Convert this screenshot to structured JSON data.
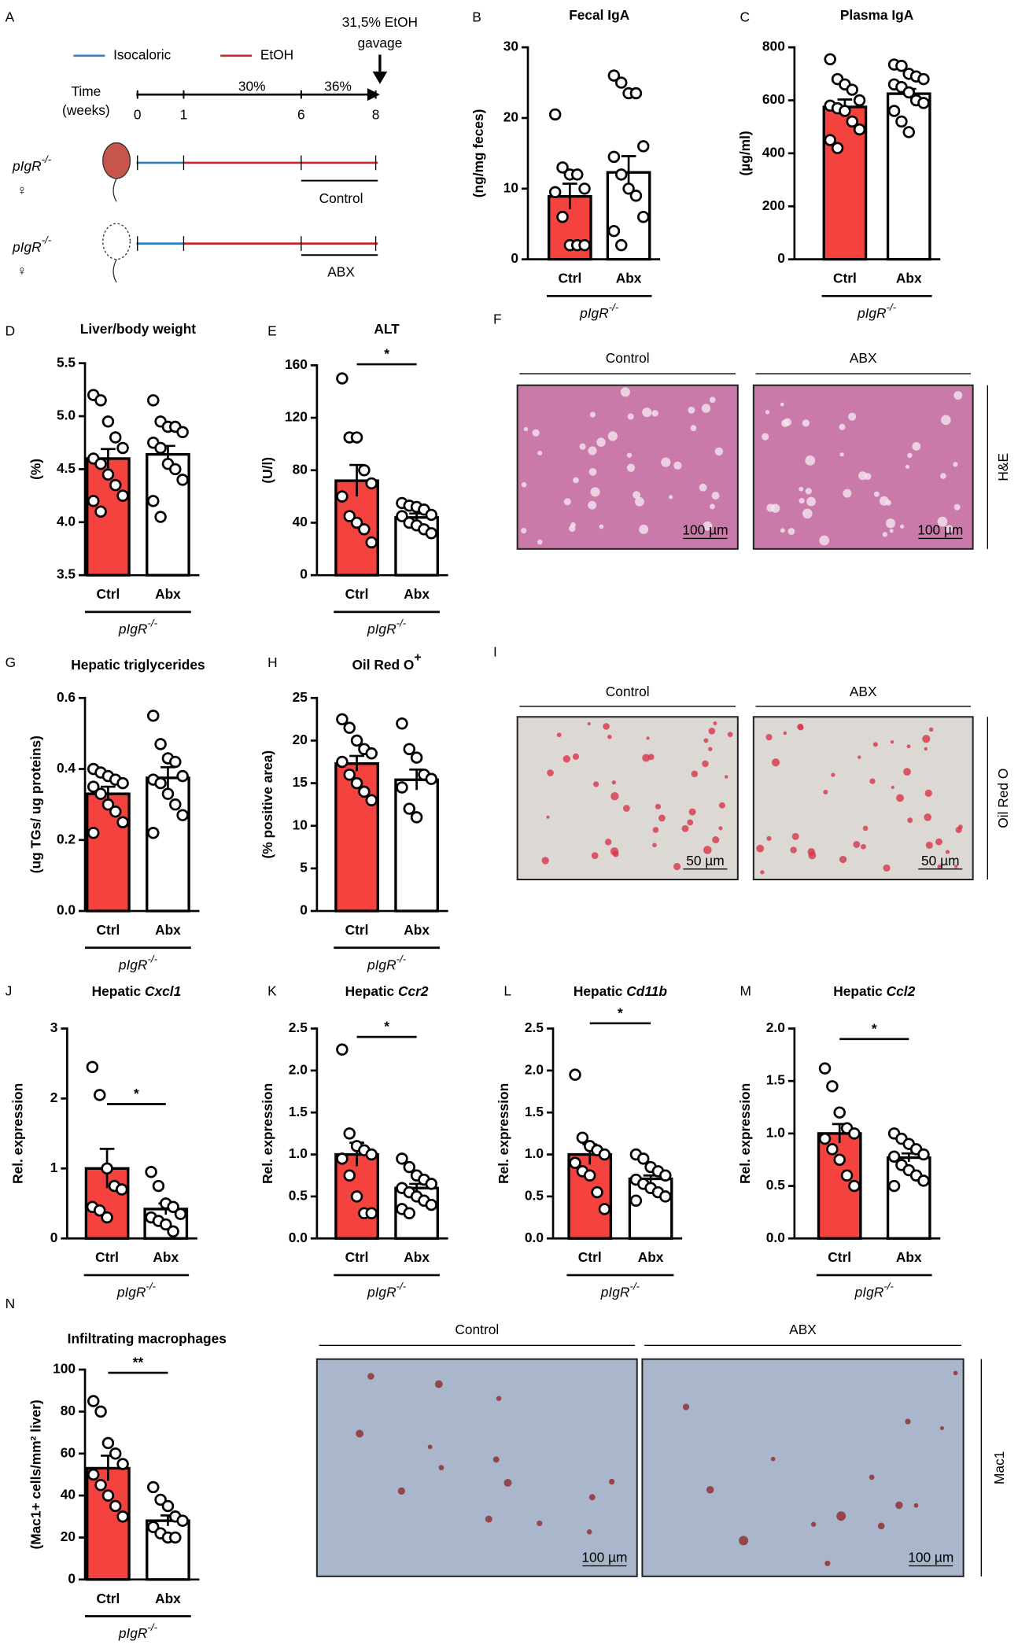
{
  "protocol": {
    "panel": "A",
    "legend": [
      "Isocaloric",
      "EtOH"
    ],
    "gavage": [
      "31,5% EtOH",
      "gavage"
    ],
    "time_label": [
      "Time",
      "(weeks)"
    ],
    "weeks": [
      0,
      1,
      6,
      8
    ],
    "phases": [
      "30%",
      "36%"
    ],
    "strain": "pIgR",
    "strain_superscript": "-/-",
    "sex": "♀",
    "groups": [
      "Control",
      "ABX"
    ]
  },
  "chart_data": [
    {
      "panel": "B",
      "type": "bar",
      "title": "Fecal IgA",
      "ylabel": "(ng/mg feces)",
      "categories": [
        "Ctrl",
        "Abx"
      ],
      "values": [
        8.9,
        12.3
      ],
      "errors": [
        1.8,
        2.3
      ],
      "points": [
        [
          20.5,
          13,
          12,
          12,
          10,
          9.5,
          6,
          2,
          2,
          2
        ],
        [
          26,
          25,
          23.5,
          23.5,
          16,
          14.5,
          12,
          10,
          9,
          6,
          4,
          2
        ]
      ],
      "ylim": [
        0,
        30
      ],
      "yticks": [
        0,
        10,
        20,
        30
      ],
      "colors": [
        "#f4433f",
        "#ffffff"
      ],
      "group_label": "pIgR",
      "group_superscript": "-/-"
    },
    {
      "panel": "C",
      "type": "bar",
      "title": "Plasma IgA",
      "ylabel": "(µg/ml)",
      "categories": [
        "Ctrl",
        "Abx"
      ],
      "values": [
        575,
        625
      ],
      "errors": [
        28,
        18
      ],
      "points": [
        [
          755,
          680,
          660,
          640,
          600,
          580,
          570,
          560,
          520,
          490,
          450,
          420
        ],
        [
          735,
          730,
          700,
          690,
          680,
          660,
          650,
          630,
          600,
          590,
          560,
          520,
          480
        ]
      ],
      "ylim": [
        0,
        800
      ],
      "yticks": [
        0,
        200,
        400,
        600,
        800
      ],
      "colors": [
        "#f4433f",
        "#ffffff"
      ],
      "group_label": "pIgR",
      "group_superscript": "-/-"
    },
    {
      "panel": "D",
      "type": "bar",
      "title": "Liver/body weight",
      "ylabel": "(%)",
      "categories": [
        "Ctrl",
        "Abx"
      ],
      "values": [
        4.6,
        4.64
      ],
      "errors": [
        0.09,
        0.08
      ],
      "points": [
        [
          5.2,
          5.15,
          4.95,
          4.8,
          4.7,
          4.6,
          4.55,
          4.45,
          4.35,
          4.25,
          4.2,
          4.1
        ],
        [
          5.15,
          4.95,
          4.9,
          4.9,
          4.85,
          4.75,
          4.7,
          4.55,
          4.5,
          4.4,
          4.2,
          4.05
        ]
      ],
      "ylim": [
        3.5,
        5.5
      ],
      "yticks": [
        3.5,
        {
          "value": 4,
          "label": "4.0"
        },
        4.5,
        {
          "value": 5,
          "label": "5.0"
        },
        5.5
      ],
      "colors": [
        "#f4433f",
        "#ffffff"
      ],
      "group_label": "pIgR",
      "group_superscript": "-/-"
    },
    {
      "panel": "E",
      "type": "bar",
      "title": "ALT",
      "ylabel": "(U/l)",
      "categories": [
        "Ctrl",
        "Abx"
      ],
      "values": [
        72,
        44
      ],
      "errors": [
        12,
        3
      ],
      "points": [
        [
          150,
          105,
          105,
          80,
          70,
          60,
          45,
          40,
          35,
          25
        ],
        [
          55,
          53,
          52,
          50,
          46,
          45,
          40,
          38,
          35,
          32
        ]
      ],
      "ylim": [
        0,
        160
      ],
      "yticks": [
        0,
        40,
        80,
        120,
        160
      ],
      "colors": [
        "#f4433f",
        "#ffffff"
      ],
      "group_label": "pIgR",
      "group_superscript": "-/-",
      "significance": "*"
    },
    {
      "panel": "G",
      "type": "bar",
      "title": "Hepatic triglycerides",
      "ylabel": "(ug TGs/ ug proteins)",
      "categories": [
        "Ctrl",
        "Abx"
      ],
      "values": [
        0.33,
        0.375
      ],
      "errors": [
        0.02,
        0.03
      ],
      "points": [
        [
          0.4,
          0.39,
          0.38,
          0.37,
          0.36,
          0.35,
          0.33,
          0.3,
          0.28,
          0.25,
          0.22
        ],
        [
          0.55,
          0.47,
          0.43,
          0.42,
          0.38,
          0.37,
          0.36,
          0.33,
          0.3,
          0.27,
          0.22
        ]
      ],
      "ylim": [
        0,
        0.6
      ],
      "yticks": [
        {
          "value": 0,
          "label": "0.0"
        },
        0.2,
        0.4,
        0.6
      ],
      "colors": [
        "#f4433f",
        "#ffffff"
      ],
      "group_label": "pIgR",
      "group_superscript": "-/-"
    },
    {
      "panel": "H",
      "type": "bar",
      "title": "Oil Red O",
      "title_sup": "+",
      "ylabel": "(% positive area)",
      "categories": [
        "Ctrl",
        "Abx"
      ],
      "values": [
        17.3,
        15.4
      ],
      "errors": [
        0.9,
        1.2
      ],
      "points": [
        [
          22.5,
          21.5,
          20,
          19,
          18.5,
          17.5,
          16,
          15,
          14,
          13
        ],
        [
          22,
          19,
          18,
          16,
          15.5,
          14.5,
          12,
          11
        ]
      ],
      "ylim": [
        0,
        25
      ],
      "yticks": [
        0,
        5,
        10,
        15,
        20,
        25
      ],
      "colors": [
        "#f4433f",
        "#ffffff"
      ],
      "group_label": "pIgR",
      "group_superscript": "-/-"
    },
    {
      "panel": "J",
      "type": "bar",
      "title": "Hepatic ",
      "title_gene": "Cxcl1",
      "ylabel": "Rel. expression",
      "categories": [
        "Ctrl",
        "Abx"
      ],
      "values": [
        1.0,
        0.42
      ],
      "errors": [
        0.28,
        0.08
      ],
      "points": [
        [
          2.45,
          2.05,
          1.0,
          0.75,
          0.7,
          0.45,
          0.4,
          0.3
        ],
        [
          0.95,
          0.75,
          0.5,
          0.45,
          0.35,
          0.3,
          0.25,
          0.2,
          0.1
        ]
      ],
      "ylim": [
        0,
        3
      ],
      "yticks": [
        0,
        1,
        2,
        3
      ],
      "colors": [
        "#f4433f",
        "#ffffff"
      ],
      "group_label": "pIgR",
      "group_superscript": "-/-",
      "significance": "*"
    },
    {
      "panel": "K",
      "type": "bar",
      "title": "Hepatic ",
      "title_gene": "Ccr2",
      "ylabel": "Rel. expression",
      "categories": [
        "Ctrl",
        "Abx"
      ],
      "values": [
        1.0,
        0.6
      ],
      "errors": [
        0.14,
        0.05
      ],
      "points": [
        [
          2.25,
          1.25,
          1.1,
          1.05,
          1.0,
          0.95,
          0.75,
          0.5,
          0.3,
          0.3
        ],
        [
          0.95,
          0.85,
          0.75,
          0.7,
          0.65,
          0.6,
          0.55,
          0.5,
          0.45,
          0.4,
          0.35,
          0.3
        ]
      ],
      "ylim": [
        0,
        2.5
      ],
      "yticks": [
        {
          "value": 0,
          "label": "0.0"
        },
        0.5,
        {
          "value": 1,
          "label": "1.0"
        },
        1.5,
        {
          "value": 2,
          "label": "2.0"
        },
        2.5
      ],
      "colors": [
        "#f4433f",
        "#ffffff"
      ],
      "group_label": "pIgR",
      "group_superscript": "-/-",
      "significance": "*"
    },
    {
      "panel": "L",
      "type": "bar",
      "title": "Hepatic ",
      "title_gene": "Cd11b",
      "ylabel": "Rel. expression",
      "categories": [
        "Ctrl",
        "Abx"
      ],
      "values": [
        1.0,
        0.71
      ],
      "errors": [
        0.12,
        0.04
      ],
      "points": [
        [
          1.95,
          1.2,
          1.1,
          1.05,
          1.0,
          0.9,
          0.8,
          0.75,
          0.55,
          0.35
        ],
        [
          1.0,
          0.95,
          0.85,
          0.8,
          0.75,
          0.7,
          0.65,
          0.6,
          0.55,
          0.5,
          0.45
        ]
      ],
      "ylim": [
        0,
        2.5
      ],
      "yticks": [
        {
          "value": 0,
          "label": "0.0"
        },
        0.5,
        {
          "value": 1,
          "label": "1.0"
        },
        1.5,
        {
          "value": 2,
          "label": "2.0"
        },
        2.5
      ],
      "colors": [
        "#f4433f",
        "#ffffff"
      ],
      "group_label": "pIgR",
      "group_superscript": "-/-",
      "significance": "*"
    },
    {
      "panel": "M",
      "type": "bar",
      "title": "Hepatic ",
      "title_gene": "Ccl2",
      "ylabel": "Rel. expression",
      "categories": [
        "Ctrl",
        "Abx"
      ],
      "values": [
        1.0,
        0.77
      ],
      "errors": [
        0.09,
        0.04
      ],
      "points": [
        [
          1.62,
          1.45,
          1.2,
          1.05,
          1.0,
          0.95,
          0.85,
          0.75,
          0.6,
          0.5
        ],
        [
          1.0,
          0.95,
          0.9,
          0.85,
          0.8,
          0.78,
          0.7,
          0.65,
          0.6,
          0.55,
          0.5
        ]
      ],
      "ylim": [
        0,
        2
      ],
      "yticks": [
        {
          "value": 0,
          "label": "0.0"
        },
        0.5,
        {
          "value": 1,
          "label": "1.0"
        },
        1.5,
        {
          "value": 2,
          "label": "2.0"
        }
      ],
      "colors": [
        "#f4433f",
        "#ffffff"
      ],
      "group_label": "pIgR",
      "group_superscript": "-/-",
      "significance": "*"
    },
    {
      "panel": "N",
      "type": "bar",
      "title": "Infiltrating macrophages",
      "ylabel": "(Mac1+ cells/mm² liver)",
      "categories": [
        "Ctrl",
        "Abx"
      ],
      "values": [
        53,
        28
      ],
      "errors": [
        6,
        2.5
      ],
      "points": [
        [
          85,
          80,
          65,
          60,
          55,
          50,
          45,
          40,
          35,
          30
        ],
        [
          44,
          38,
          35,
          30,
          28,
          25,
          22,
          20,
          20
        ]
      ],
      "ylim": [
        0,
        100
      ],
      "yticks": [
        0,
        20,
        40,
        60,
        80,
        100
      ],
      "colors": [
        "#f4433f",
        "#ffffff"
      ],
      "group_label": "pIgR",
      "group_superscript": "-/-",
      "significance": "**"
    }
  ],
  "images": [
    {
      "panel": "F",
      "columns": [
        "Control",
        "ABX"
      ],
      "stain": "H&E",
      "scale": "100 µm"
    },
    {
      "panel": "I",
      "columns": [
        "Control",
        "ABX"
      ],
      "stain": "Oil Red O",
      "scale": "50 µm"
    },
    {
      "columns": [
        "Control",
        "ABX"
      ],
      "stain": "Mac1",
      "scale": "100 µm"
    }
  ]
}
